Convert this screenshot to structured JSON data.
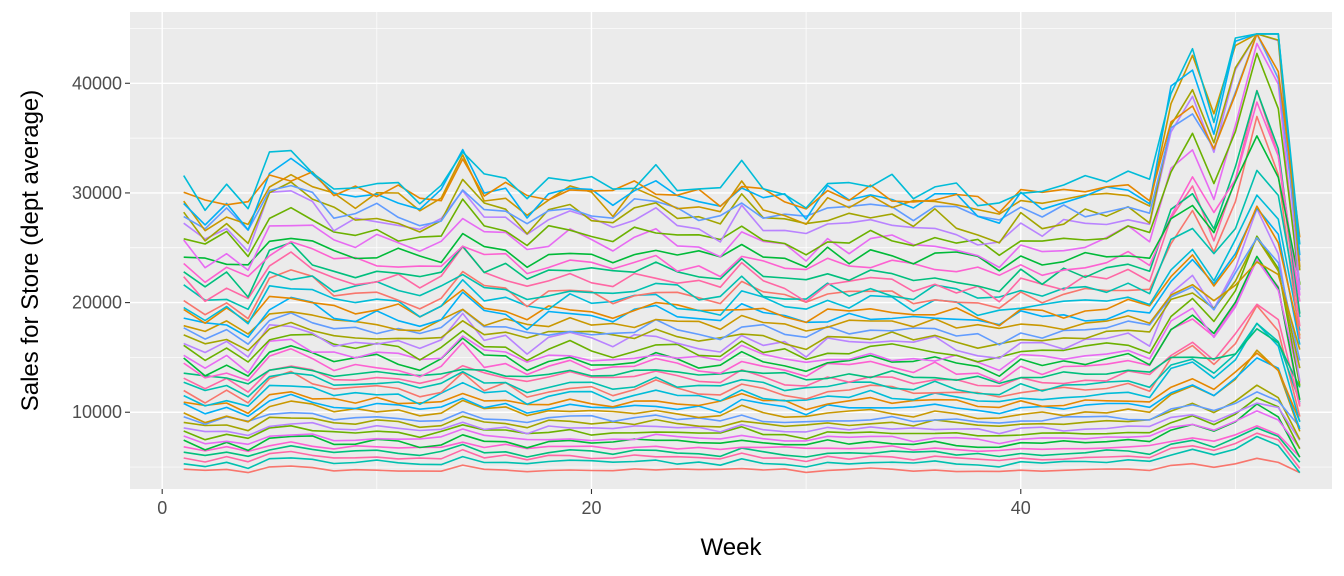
{
  "chart_data": {
    "type": "line",
    "title": "",
    "xlabel": "Week",
    "ylabel": "Sales for Store (dept average)",
    "xlim": [
      -1.5,
      54.5
    ],
    "ylim": [
      3000,
      46500
    ],
    "x_ticks": [
      0,
      20,
      40
    ],
    "x_minor_ticks": [
      10,
      30,
      50
    ],
    "y_ticks": [
      10000,
      20000,
      30000,
      40000
    ],
    "y_tick_labels": [
      "10000",
      "20000",
      "30000",
      "40000"
    ],
    "y_minor_ticks": [
      5000,
      15000,
      25000,
      35000,
      45000
    ],
    "x_tick_labels": [
      "0",
      "20",
      "40"
    ],
    "grid": true,
    "legend": "none",
    "panel_background": "#EBEBEB",
    "gridline_color": "#FFFFFF",
    "colors": [
      "#F8766D",
      "#E58700",
      "#C99800",
      "#A3A500",
      "#6BB100",
      "#00BA38",
      "#00BF7D",
      "#00C0AF",
      "#00BCD8",
      "#00B0F6",
      "#619CFF",
      "#B983FF",
      "#E76BF3",
      "#FD61D1",
      "#FF67A4"
    ],
    "x": [
      1,
      2,
      3,
      4,
      5,
      6,
      7,
      8,
      9,
      10,
      11,
      12,
      13,
      14,
      15,
      16,
      17,
      18,
      19,
      20,
      21,
      22,
      23,
      24,
      25,
      26,
      27,
      28,
      29,
      30,
      31,
      32,
      33,
      34,
      35,
      36,
      37,
      38,
      39,
      40,
      41,
      42,
      43,
      44,
      45,
      46,
      47,
      48,
      49,
      50,
      51,
      52,
      53
    ],
    "series_count": 45,
    "series_base_levels": [
      4700,
      5300,
      5800,
      6200,
      6700,
      7100,
      7500,
      8000,
      8400,
      8900,
      9300,
      9800,
      10300,
      10800,
      11300,
      11800,
      12300,
      12800,
      13300,
      13800,
      14300,
      14800,
      15400,
      16000,
      16600,
      17200,
      17800,
      18400,
      19000,
      19600,
      20200,
      20800,
      21500,
      22300,
      23100,
      24000,
      24900,
      25800,
      26600,
      27400,
      28000,
      28600,
      29200,
      29700,
      30200
    ],
    "holiday_peak_week": 51,
    "peak_values_range": [
      5000,
      44500
    ],
    "last_week_values_range": [
      4700,
      25000
    ]
  }
}
